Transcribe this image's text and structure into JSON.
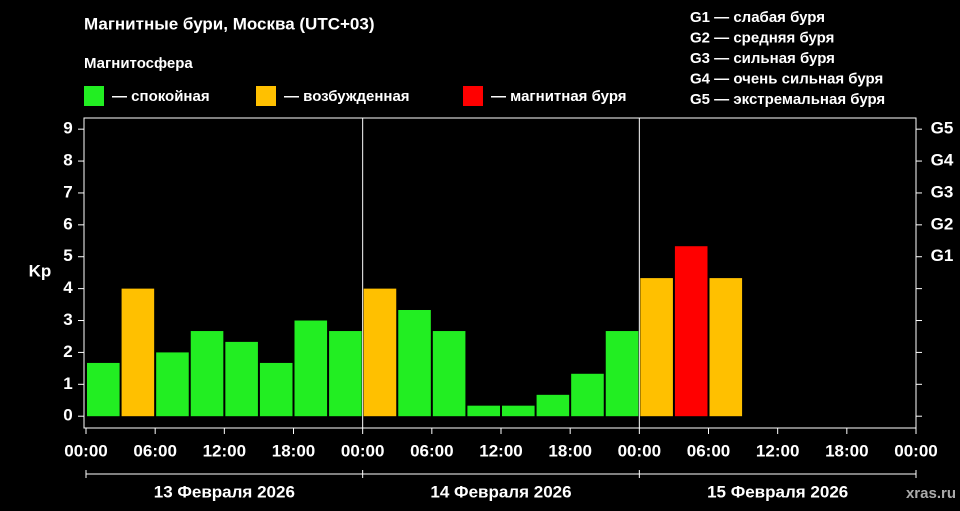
{
  "chart_data": {
    "type": "bar",
    "title": "Магнитные бури, Москва (UTC+03)",
    "legend_title": "Магнитосфера",
    "legend": [
      {
        "name": "— спокойная",
        "color": "#22ee22"
      },
      {
        "name": "— возбужденная",
        "color": "#ffc000"
      },
      {
        "name": "— магнитная буря",
        "color": "#ff0000"
      }
    ],
    "storm_levels": [
      "G1 — слабая буря",
      "G2 — средняя буря",
      "G3 — сильная буря",
      "G4 — очень сильная буря",
      "G5 — экстремальная буря"
    ],
    "y_label": "Kp",
    "x": [
      1.5,
      4.5,
      7.5,
      10.5,
      13.5,
      16.5,
      19.5,
      22.5,
      25.5,
      28.5,
      31.5,
      34.5,
      37.5,
      40.5,
      43.5,
      46.5,
      49.5,
      52.5,
      55.5
    ],
    "values": [
      1.67,
      4,
      2,
      2.67,
      2.33,
      1.67,
      3,
      2.67,
      4,
      3.33,
      2.67,
      0.33,
      0.33,
      0.67,
      1.33,
      2.67,
      4.33,
      5.33,
      4.33
    ],
    "colors": [
      "#22ee22",
      "#ffc000",
      "#22ee22",
      "#22ee22",
      "#22ee22",
      "#22ee22",
      "#22ee22",
      "#22ee22",
      "#ffc000",
      "#22ee22",
      "#22ee22",
      "#22ee22",
      "#22ee22",
      "#22ee22",
      "#22ee22",
      "#22ee22",
      "#ffc000",
      "#ff0000",
      "#ffc000"
    ],
    "bar_width": 3,
    "xlim": [
      0,
      72
    ],
    "xticks": [
      {
        "value": 0,
        "label": "00:00"
      },
      {
        "value": 6,
        "label": "06:00"
      },
      {
        "value": 12,
        "label": "12:00"
      },
      {
        "value": 18,
        "label": "18:00"
      },
      {
        "value": 24,
        "label": "00:00"
      },
      {
        "value": 30,
        "label": "06:00"
      },
      {
        "value": 36,
        "label": "12:00"
      },
      {
        "value": 42,
        "label": "18:00"
      },
      {
        "value": 48,
        "label": "00:00"
      },
      {
        "value": 54,
        "label": "06:00"
      },
      {
        "value": 60,
        "label": "12:00"
      },
      {
        "value": 66,
        "label": "18:00"
      },
      {
        "value": 72,
        "label": "00:00"
      }
    ],
    "day_separators": [
      24,
      48
    ],
    "days": [
      "13 Февраля 2026",
      "14 Февраля 2026",
      "15 Февраля 2026"
    ],
    "ylim": [
      -0.37,
      9.35
    ],
    "yticks": [
      0,
      1,
      2,
      3,
      4,
      5,
      6,
      7,
      8,
      9
    ],
    "y2ticks": [
      {
        "value": 5,
        "label": "G1"
      },
      {
        "value": 6,
        "label": "G2"
      },
      {
        "value": 7,
        "label": "G3"
      },
      {
        "value": 8,
        "label": "G4"
      },
      {
        "value": 9,
        "label": "G5"
      }
    ],
    "watermark": "xras.ru"
  }
}
